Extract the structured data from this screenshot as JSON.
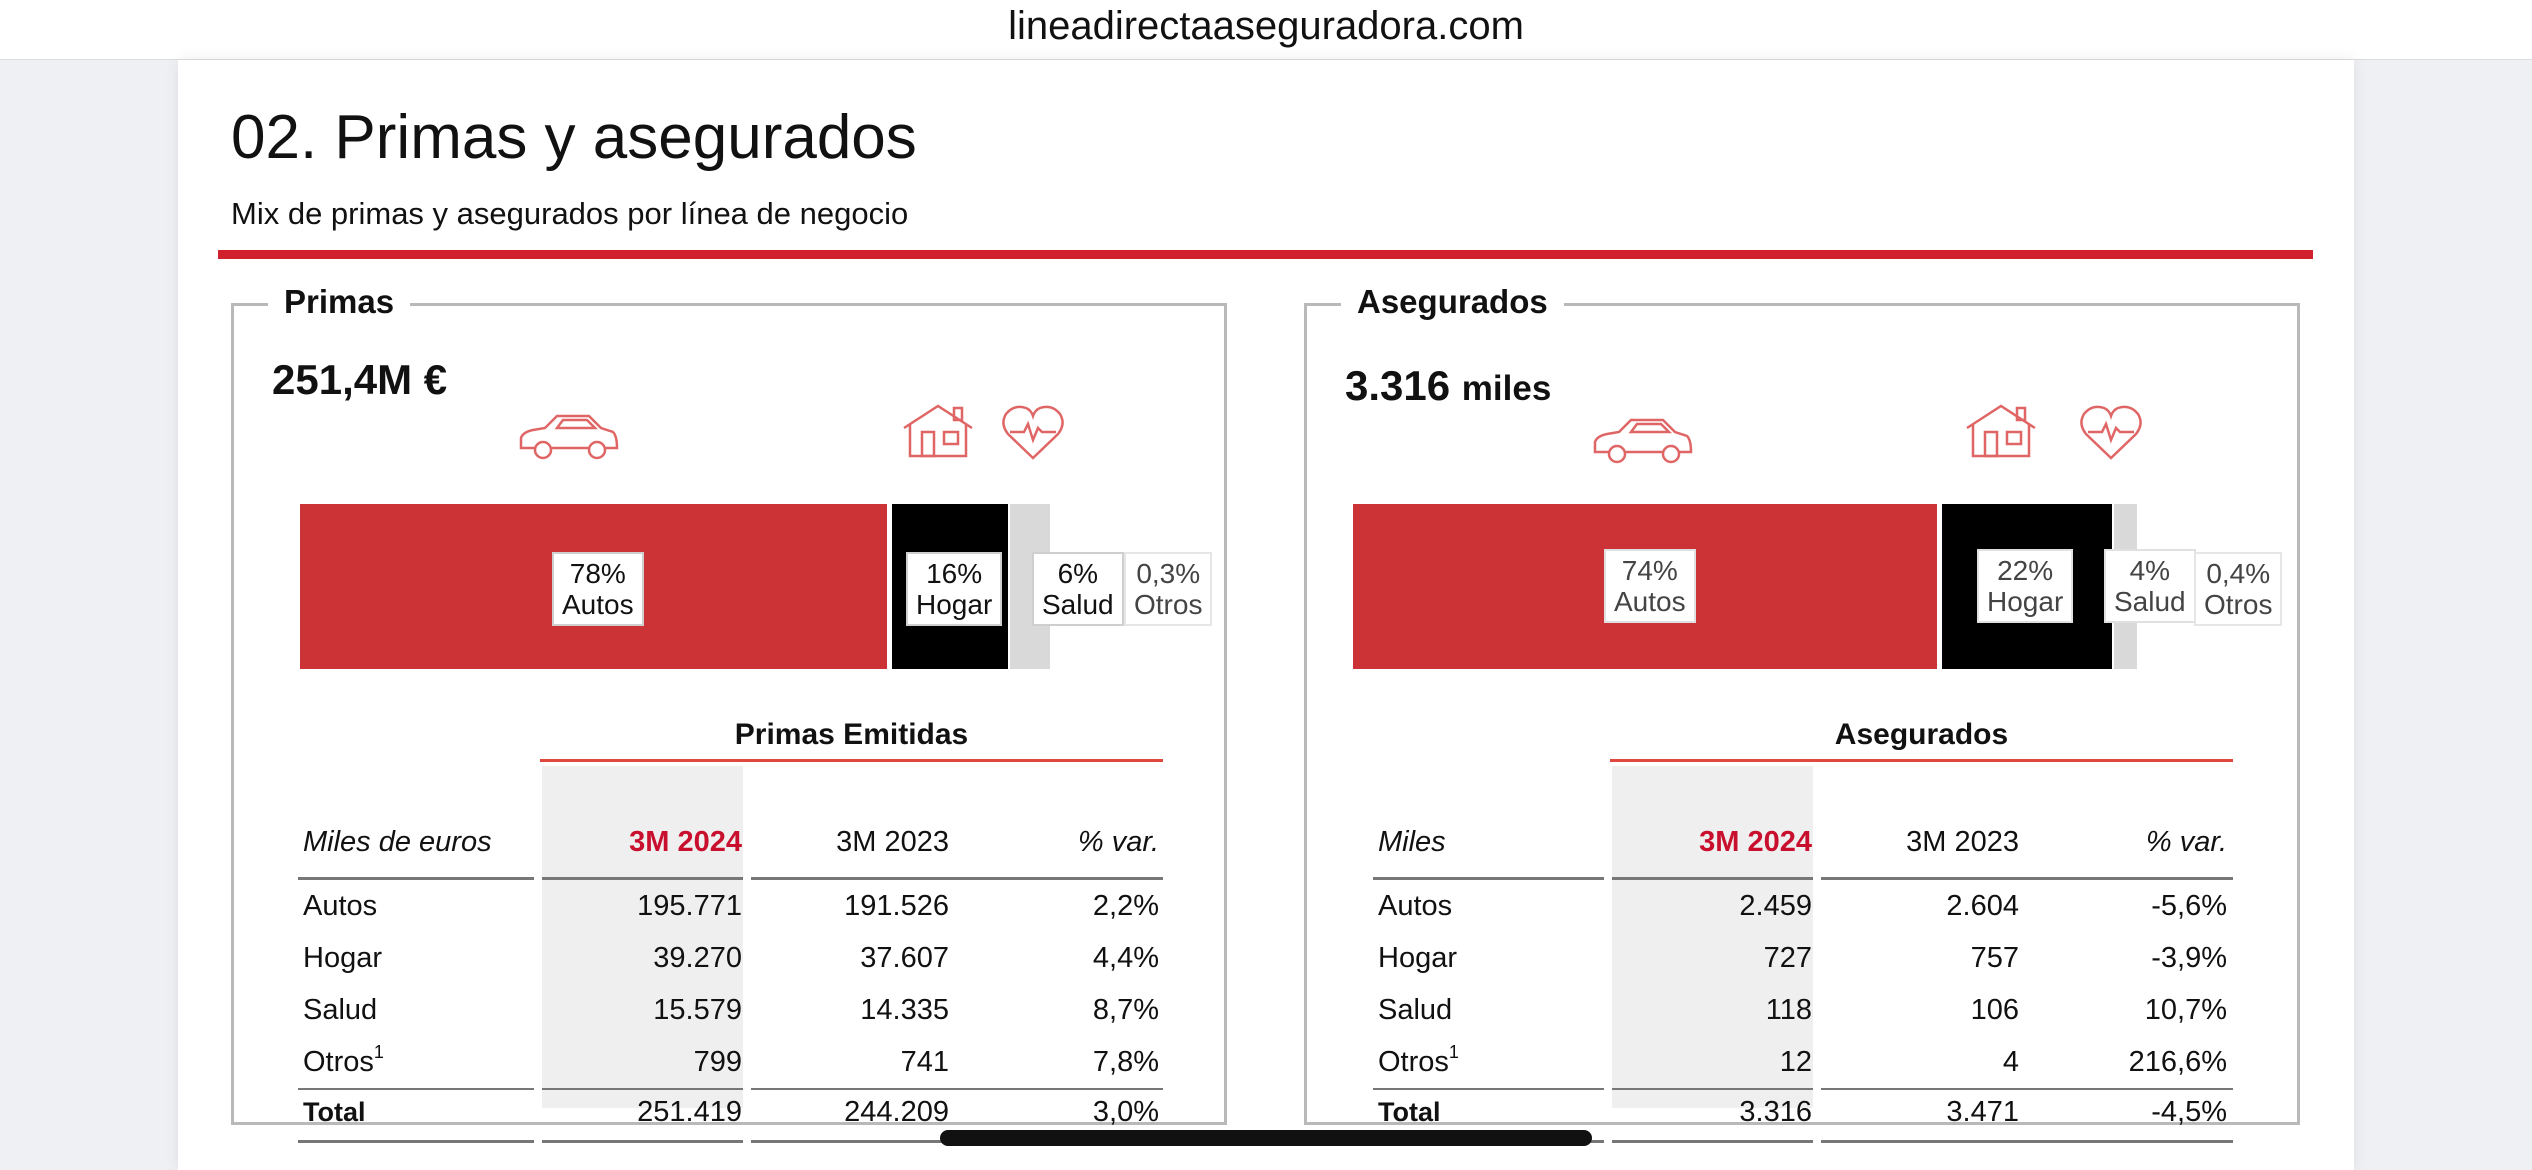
{
  "browser": {
    "url": "lineadirectaaseguradora.com"
  },
  "page": {
    "title": "02. Primas y asegurados",
    "subtitle": "Mix de primas y asegurados por línea de negocio"
  },
  "colors": {
    "accent": "#d1202e",
    "autos": "#cc3336",
    "hogar": "#000000",
    "salud": "#d9d9d9",
    "highlight_text": "#c8102e"
  },
  "icons": [
    "car-icon",
    "house-icon",
    "heart-pulse-icon"
  ],
  "primas": {
    "legend": "Primas",
    "total": "251,4M €",
    "mix": [
      {
        "pct": "78%",
        "label": "Autos",
        "share": 78
      },
      {
        "pct": "16%",
        "label": "Hogar",
        "share": 16
      },
      {
        "pct": "6%",
        "label": "Salud",
        "share": 6
      },
      {
        "pct": "0,3%",
        "label": "Otros",
        "share": 0.3
      }
    ],
    "table": {
      "group_header": "Primas Emitidas",
      "columns": [
        "Miles de euros",
        "3M 2024",
        "3M 2023",
        "% var."
      ],
      "rows": [
        {
          "name": "Autos",
          "sup": "",
          "v2024": "195.771",
          "v2023": "191.526",
          "var": "2,2%"
        },
        {
          "name": "Hogar",
          "sup": "",
          "v2024": "39.270",
          "v2023": "37.607",
          "var": "4,4%"
        },
        {
          "name": "Salud",
          "sup": "",
          "v2024": "15.579",
          "v2023": "14.335",
          "var": "8,7%"
        },
        {
          "name": "Otros",
          "sup": "1",
          "v2024": "799",
          "v2023": "741",
          "var": "7,8%"
        }
      ],
      "total": {
        "name": "Total",
        "v2024": "251.419",
        "v2023": "244.209",
        "var": "3,0%"
      }
    }
  },
  "asegurados": {
    "legend": "Asegurados",
    "total_value": "3.316",
    "total_unit": "miles",
    "mix": [
      {
        "pct": "74%",
        "label": "Autos",
        "share": 74
      },
      {
        "pct": "22%",
        "label": "Hogar",
        "share": 22
      },
      {
        "pct": "4%",
        "label": "Salud",
        "share": 4
      },
      {
        "pct": "0,4%",
        "label": "Otros",
        "share": 0.4
      }
    ],
    "table": {
      "group_header": "Asegurados",
      "columns": [
        "Miles",
        "3M 2024",
        "3M 2023",
        "% var."
      ],
      "rows": [
        {
          "name": "Autos",
          "sup": "",
          "v2024": "2.459",
          "v2023": "2.604",
          "var": "-5,6%"
        },
        {
          "name": "Hogar",
          "sup": "",
          "v2024": "727",
          "v2023": "757",
          "var": "-3,9%"
        },
        {
          "name": "Salud",
          "sup": "",
          "v2024": "118",
          "v2023": "106",
          "var": "10,7%"
        },
        {
          "name": "Otros",
          "sup": "1",
          "v2024": "12",
          "v2023": "4",
          "var": "216,6%"
        }
      ],
      "total": {
        "name": "Total",
        "v2024": "3.316",
        "v2023": "3.471",
        "var": "-4,5%"
      }
    }
  }
}
